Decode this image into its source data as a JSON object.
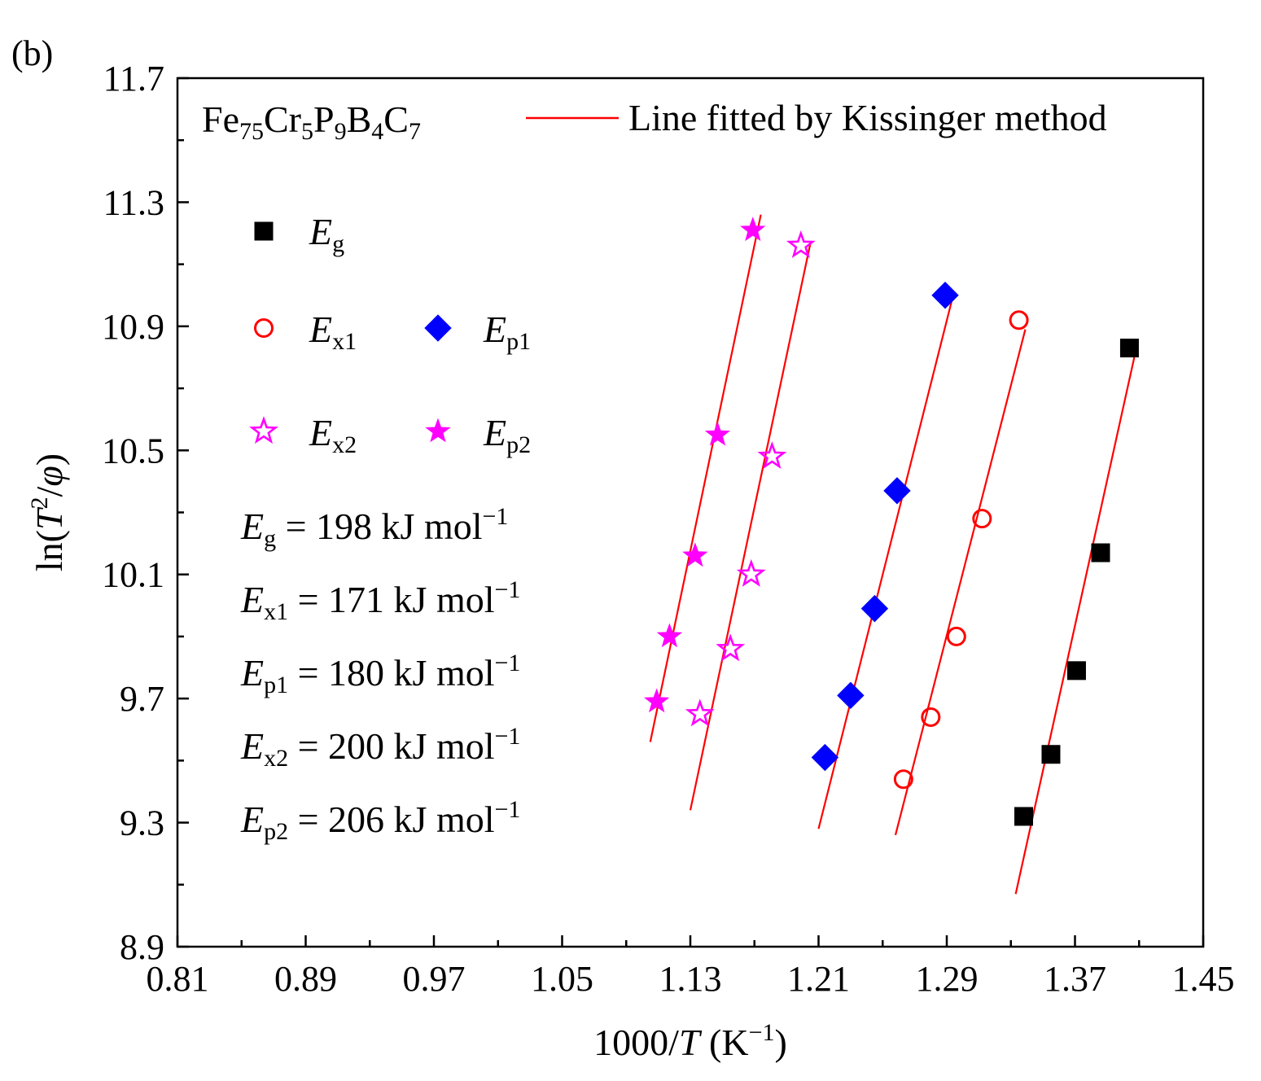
{
  "chart_data": {
    "type": "scatter",
    "panel_label": "(b)",
    "title": "",
    "xlabel": {
      "prefix": "1000/",
      "var": "T",
      "mid": " (K",
      "sup": "−1",
      "suffix": ")"
    },
    "ylabel": {
      "prefix": "ln(",
      "var": "T",
      "sup": "2",
      "mid": "/",
      "var2": "φ",
      "suffix": ")"
    },
    "xlim": [
      0.81,
      1.45
    ],
    "ylim": [
      8.9,
      11.7
    ],
    "xticks": [
      "0.81",
      "0.89",
      "0.97",
      "1.05",
      "1.13",
      "1.21",
      "1.29",
      "1.37",
      "1.45"
    ],
    "xtick_values": [
      0.81,
      0.89,
      0.97,
      1.05,
      1.13,
      1.21,
      1.29,
      1.37,
      1.45
    ],
    "yticks": [
      "8.9",
      "9.3",
      "9.7",
      "10.1",
      "10.5",
      "10.9",
      "11.3",
      "11.7"
    ],
    "ytick_values": [
      8.9,
      9.3,
      9.7,
      10.1,
      10.5,
      10.9,
      11.3,
      11.7
    ],
    "grid": false,
    "composition": {
      "parts": [
        {
          "t": "Fe",
          "s": ""
        },
        {
          "t": "75",
          "s": "sub"
        },
        {
          "t": "Cr",
          "s": ""
        },
        {
          "t": "5",
          "s": "sub"
        },
        {
          "t": "P",
          "s": ""
        },
        {
          "t": "9",
          "s": "sub"
        },
        {
          "t": "B",
          "s": ""
        },
        {
          "t": "4",
          "s": "sub"
        },
        {
          "t": "C",
          "s": ""
        },
        {
          "t": "7",
          "s": "sub"
        }
      ]
    },
    "fit_legend_label": "Line fitted by Kissinger method",
    "fit_color": "#ff0000",
    "series": [
      {
        "name": "E",
        "sub": "g",
        "marker": "square",
        "color": "#000000",
        "fill": true,
        "x": [
          1.338,
          1.355,
          1.371,
          1.386,
          1.404
        ],
        "y": [
          9.32,
          9.52,
          9.79,
          10.17,
          10.83
        ],
        "fit_x": [
          1.333,
          1.407
        ],
        "fit_y": [
          9.07,
          10.8
        ]
      },
      {
        "name": "E",
        "sub": "x1",
        "marker": "circle",
        "color": "#ff0000",
        "fill": false,
        "x": [
          1.263,
          1.28,
          1.296,
          1.312,
          1.335
        ],
        "y": [
          9.44,
          9.64,
          9.9,
          10.28,
          10.92
        ],
        "fit_x": [
          1.258,
          1.339
        ],
        "fit_y": [
          9.26,
          10.89
        ]
      },
      {
        "name": "E",
        "sub": "p1",
        "marker": "diamond",
        "color": "#0000ff",
        "fill": true,
        "x": [
          1.214,
          1.23,
          1.245,
          1.259,
          1.289
        ],
        "y": [
          9.51,
          9.71,
          9.99,
          10.37,
          11.0
        ],
        "fit_x": [
          1.21,
          1.293
        ],
        "fit_y": [
          9.28,
          10.98
        ]
      },
      {
        "name": "E",
        "sub": "x2",
        "marker": "star",
        "color": "#ff00ff",
        "fill": false,
        "x": [
          1.136,
          1.155,
          1.168,
          1.181,
          1.199
        ],
        "y": [
          9.65,
          9.86,
          10.1,
          10.48,
          11.16
        ],
        "fit_x": [
          1.13,
          1.205
        ],
        "fit_y": [
          9.34,
          11.17
        ]
      },
      {
        "name": "E",
        "sub": "p2",
        "marker": "star",
        "color": "#ff00ff",
        "fill": true,
        "x": [
          1.109,
          1.117,
          1.133,
          1.147,
          1.169
        ],
        "y": [
          9.69,
          9.9,
          10.16,
          10.55,
          11.21
        ],
        "fit_x": [
          1.105,
          1.174
        ],
        "fit_y": [
          9.56,
          11.26
        ]
      }
    ],
    "activation_energies": [
      {
        "name": "E",
        "sub": "g",
        "text": " = 198 kJ mol",
        "sup": "−1"
      },
      {
        "name": "E",
        "sub": "x1",
        "text": " = 171 kJ mol",
        "sup": "−1"
      },
      {
        "name": "E",
        "sub": "p1",
        "text": " = 180 kJ mol",
        "sup": "−1"
      },
      {
        "name": "E",
        "sub": "x2",
        "text": " = 200 kJ mol",
        "sup": "−1"
      },
      {
        "name": "E",
        "sub": "p2",
        "text": " = 206 kJ mol",
        "sup": "−1"
      }
    ]
  }
}
